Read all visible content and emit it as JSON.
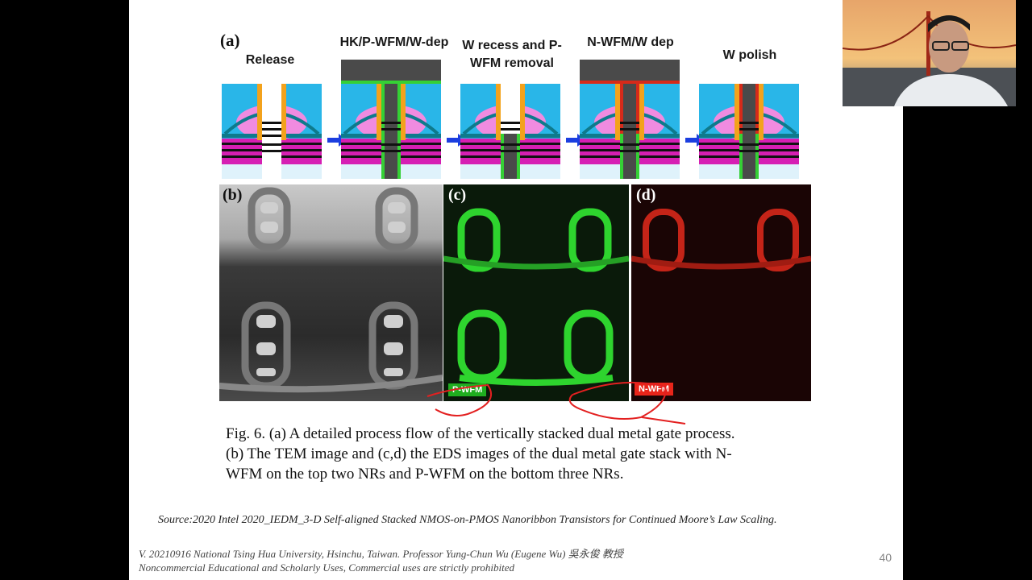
{
  "panel_a": {
    "label": "(a)",
    "steps": [
      {
        "title": "Release"
      },
      {
        "title": "HK/P-WFM/W-dep"
      },
      {
        "title": "W recess and P-WFM removal"
      },
      {
        "title": "N-WFM/W dep"
      },
      {
        "title": "W polish"
      }
    ]
  },
  "panel_b": {
    "label": "(b)"
  },
  "panel_c": {
    "label": "(c)",
    "tag": "P-WFM",
    "tag_color": "#1fae1f"
  },
  "panel_d": {
    "label": "(d)",
    "tag": "N-WFM",
    "tag_color": "#e8251a"
  },
  "caption": {
    "line1": "Fig. 6. (a) A detailed process flow of the vertically stacked dual metal gate process.",
    "line2": "(b) The TEM image and (c,d) the EDS images of the dual metal gate stack with N-",
    "line3": "WFM on the top two NRs and P-WFM on the bottom three NRs."
  },
  "source": "Source:2020 Intel 2020_IEDM_3-D Self-aligned Stacked NMOS-on-PMOS Nanoribbon Transistors for Continued Moore’s Law Scaling.",
  "footer": {
    "line1": "V. 20210916 National Tsing Hua University, Hsinchu, Taiwan. Professor Yung-Chun Wu (Eugene Wu) 吳永俊 教授",
    "line2": "Noncommercial Educational and Scholarly Uses, Commercial uses are strictly prohibited"
  },
  "page_number": "40",
  "colors": {
    "dielectric": "#29b6e8",
    "spacer": "#f3a21c",
    "epi": "#f08be0",
    "channel_magenta": "#d61fb3",
    "metal_dark": "#4a4a4a",
    "p_wfm": "#35d035",
    "n_wfm": "#d62a1a",
    "arrow": "#1b3ee0",
    "annotation": "#e32020"
  }
}
